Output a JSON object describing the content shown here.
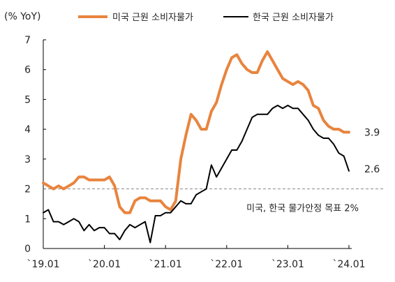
{
  "chart_data": {
    "type": "line",
    "unit_label": "(% YoY)",
    "ylim": [
      0,
      7
    ],
    "y_ticks": [
      0,
      1,
      2,
      3,
      4,
      5,
      6,
      7
    ],
    "x_ticks": [
      {
        "label": "`19.01",
        "index": 0
      },
      {
        "label": "`20.01",
        "index": 12
      },
      {
        "label": "`21.01",
        "index": 24
      },
      {
        "label": "`22.01",
        "index": 36
      },
      {
        "label": "`23.01",
        "index": 48
      },
      {
        "label": "`24.01",
        "index": 60
      }
    ],
    "x_start": "2019-01",
    "x_end": "2024-02",
    "series": [
      {
        "name": "미국 근원 소비자물가",
        "color": "#e8843e",
        "end_label": "3.9",
        "values": [
          2.2,
          2.1,
          2.0,
          2.1,
          2.0,
          2.1,
          2.2,
          2.4,
          2.4,
          2.3,
          2.3,
          2.3,
          2.3,
          2.4,
          2.1,
          1.4,
          1.2,
          1.2,
          1.6,
          1.7,
          1.7,
          1.6,
          1.6,
          1.6,
          1.4,
          1.3,
          1.6,
          3.0,
          3.8,
          4.5,
          4.3,
          4.0,
          4.0,
          4.6,
          4.9,
          5.5,
          6.0,
          6.4,
          6.5,
          6.2,
          6.0,
          5.9,
          5.9,
          6.3,
          6.6,
          6.3,
          6.0,
          5.7,
          5.6,
          5.5,
          5.6,
          5.5,
          5.3,
          4.8,
          4.7,
          4.3,
          4.1,
          4.0,
          4.0,
          3.9,
          3.9
        ]
      },
      {
        "name": "한국 근원 소비자물가",
        "color": "#000000",
        "end_label": "2.6",
        "values": [
          1.2,
          1.3,
          0.9,
          0.9,
          0.8,
          0.9,
          1.0,
          0.9,
          0.6,
          0.8,
          0.6,
          0.7,
          0.7,
          0.5,
          0.5,
          0.3,
          0.6,
          0.8,
          0.7,
          0.8,
          0.9,
          0.2,
          1.1,
          1.1,
          1.2,
          1.2,
          1.4,
          1.6,
          1.5,
          1.5,
          1.8,
          1.9,
          2.0,
          2.8,
          2.4,
          2.7,
          3.0,
          3.3,
          3.3,
          3.6,
          4.0,
          4.4,
          4.5,
          4.5,
          4.5,
          4.7,
          4.8,
          4.7,
          4.8,
          4.7,
          4.7,
          4.5,
          4.3,
          4.0,
          3.8,
          3.7,
          3.7,
          3.5,
          3.2,
          3.1,
          2.6
        ]
      }
    ],
    "reference_line": {
      "value": 2.0,
      "label": "미국, 한국 물가안정 목표 2%",
      "color": "#888888"
    }
  }
}
